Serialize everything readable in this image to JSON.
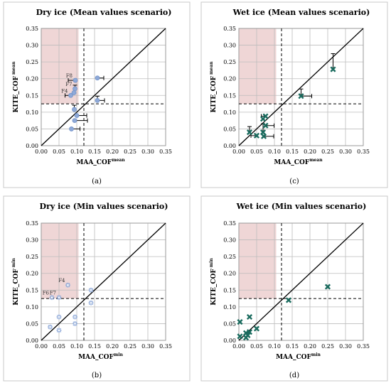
{
  "chart_data": [
    {
      "type": "scatter",
      "panel": "(a)",
      "title": "Dry ice (Mean values scenario)",
      "xlabel": "MAA_COF",
      "xlabel_sup": "mean",
      "ylabel": "KITE_COF",
      "ylabel_sup": "mean",
      "xlim": [
        0,
        0.35
      ],
      "ylim": [
        0,
        0.35
      ],
      "xticks": [
        "0.00",
        "0.05",
        "0.10",
        "0.15",
        "0.20",
        "0.25",
        "0.30",
        "0.35"
      ],
      "yticks": [
        "0.00",
        "0.05",
        "0.10",
        "0.15",
        "0.20",
        "0.25",
        "0.30",
        "0.35"
      ],
      "shaded_region": {
        "x": [
          0,
          0.105
        ],
        "y": [
          0.125,
          0.35
        ]
      },
      "threshold_x": 0.12,
      "threshold_y": 0.125,
      "marker": "circle",
      "color": "#8ea9d8",
      "error_bar_color": "#000000",
      "points": [
        {
          "x": 0.083,
          "y": 0.15,
          "label": "F4"
        },
        {
          "x": 0.092,
          "y": 0.158,
          "label": ""
        },
        {
          "x": 0.095,
          "y": 0.17,
          "label": "F7"
        },
        {
          "x": 0.096,
          "y": 0.195,
          "label": "F8"
        },
        {
          "x": 0.093,
          "y": 0.108,
          "label": ""
        },
        {
          "x": 0.1,
          "y": 0.09,
          "label": ""
        },
        {
          "x": 0.094,
          "y": 0.075,
          "label": ""
        },
        {
          "x": 0.085,
          "y": 0.05,
          "label": ""
        },
        {
          "x": 0.158,
          "y": 0.202,
          "label": ""
        },
        {
          "x": 0.158,
          "y": 0.135,
          "label": ""
        }
      ],
      "caption": "(a)"
    },
    {
      "type": "scatter",
      "panel": "(b)",
      "title": "Dry ice (Min values scenario)",
      "xlabel": "MAA_COF",
      "xlabel_sup": "min",
      "ylabel": "KITE_COF",
      "ylabel_sup": "min",
      "xlim": [
        0,
        0.35
      ],
      "ylim": [
        0,
        0.35
      ],
      "xticks": [
        "0.00",
        "0.05",
        "0.10",
        "0.15",
        "0.20",
        "0.25",
        "0.30",
        "0.35"
      ],
      "yticks": [
        "0.00",
        "0.05",
        "0.10",
        "0.15",
        "0.20",
        "0.25",
        "0.30",
        "0.35"
      ],
      "shaded_region": {
        "x": [
          0,
          0.105
        ],
        "y": [
          0.125,
          0.35
        ]
      },
      "threshold_x": 0.12,
      "threshold_y": 0.125,
      "marker": "star",
      "color": "#8ea9d8",
      "error_bar_color": "#000000",
      "points": [
        {
          "x": 0.075,
          "y": 0.165,
          "label": "F4"
        },
        {
          "x": 0.03,
          "y": 0.128,
          "label": "F6"
        },
        {
          "x": 0.05,
          "y": 0.128,
          "label": "F7"
        },
        {
          "x": 0.14,
          "y": 0.15,
          "label": ""
        },
        {
          "x": 0.14,
          "y": 0.112,
          "label": ""
        },
        {
          "x": 0.05,
          "y": 0.07,
          "label": ""
        },
        {
          "x": 0.095,
          "y": 0.07,
          "label": ""
        },
        {
          "x": 0.095,
          "y": 0.05,
          "label": ""
        },
        {
          "x": 0.025,
          "y": 0.04,
          "label": ""
        },
        {
          "x": 0.05,
          "y": 0.03,
          "label": ""
        }
      ],
      "caption": "(b)"
    },
    {
      "type": "scatter",
      "panel": "(c)",
      "title": "Wet ice (Mean values scenario)",
      "xlabel": "MAA_COF",
      "xlabel_sup": "mean",
      "ylabel": "KITE_COF",
      "ylabel_sup": "mean",
      "xlim": [
        0,
        0.35
      ],
      "ylim": [
        0,
        0.35
      ],
      "xticks": [
        "0.00",
        "0.05",
        "0.10",
        "0.15",
        "0.20",
        "0.25",
        "0.30",
        "0.35"
      ],
      "yticks": [
        "0.00",
        "0.05",
        "0.10",
        "0.15",
        "0.20",
        "0.25",
        "0.30",
        "0.35"
      ],
      "shaded_region": {
        "x": [
          0,
          0.105
        ],
        "y": [
          0.125,
          0.35
        ]
      },
      "threshold_x": 0.12,
      "threshold_y": 0.125,
      "marker": "x",
      "color": "#1a6b5e",
      "error_bar_color": "#000000",
      "points": [
        {
          "x": 0.265,
          "y": 0.228,
          "label": ""
        },
        {
          "x": 0.175,
          "y": 0.148,
          "label": ""
        },
        {
          "x": 0.075,
          "y": 0.088,
          "label": ""
        },
        {
          "x": 0.068,
          "y": 0.08,
          "label": ""
        },
        {
          "x": 0.075,
          "y": 0.06,
          "label": ""
        },
        {
          "x": 0.068,
          "y": 0.04,
          "label": ""
        },
        {
          "x": 0.07,
          "y": 0.028,
          "label": ""
        },
        {
          "x": 0.03,
          "y": 0.04,
          "label": ""
        },
        {
          "x": 0.05,
          "y": 0.03,
          "label": ""
        }
      ],
      "caption": "(c)"
    },
    {
      "type": "scatter",
      "panel": "(d)",
      "title": "Wet ice (Min values scenario)",
      "xlabel": "MAA_COF",
      "xlabel_sup": "min",
      "ylabel": "KITE_COF",
      "ylabel_sup": "min",
      "xlim": [
        0,
        0.35
      ],
      "ylim": [
        0,
        0.35
      ],
      "xticks": [
        "0.00",
        "0.05",
        "0.10",
        "0.15",
        "0.20",
        "0.25",
        "0.30",
        "0.35"
      ],
      "yticks": [
        "0.00",
        "0.05",
        "0.10",
        "0.15",
        "0.20",
        "0.25",
        "0.30",
        "0.35"
      ],
      "shaded_region": {
        "x": [
          0,
          0.105
        ],
        "y": [
          0.125,
          0.35
        ]
      },
      "threshold_x": 0.12,
      "threshold_y": 0.125,
      "marker": "x",
      "color": "#1a6b5e",
      "error_bar_color": "#000000",
      "points": [
        {
          "x": 0.25,
          "y": 0.16,
          "label": ""
        },
        {
          "x": 0.14,
          "y": 0.12,
          "label": ""
        },
        {
          "x": 0.03,
          "y": 0.07,
          "label": ""
        },
        {
          "x": 0.003,
          "y": 0.055,
          "label": ""
        },
        {
          "x": 0.05,
          "y": 0.035,
          "label": ""
        },
        {
          "x": 0.03,
          "y": 0.025,
          "label": ""
        },
        {
          "x": 0.02,
          "y": 0.022,
          "label": ""
        },
        {
          "x": 0.025,
          "y": 0.015,
          "label": ""
        },
        {
          "x": 0.003,
          "y": 0.012,
          "label": ""
        },
        {
          "x": 0.02,
          "y": 0.008,
          "label": ""
        }
      ],
      "caption": "(d)"
    }
  ]
}
